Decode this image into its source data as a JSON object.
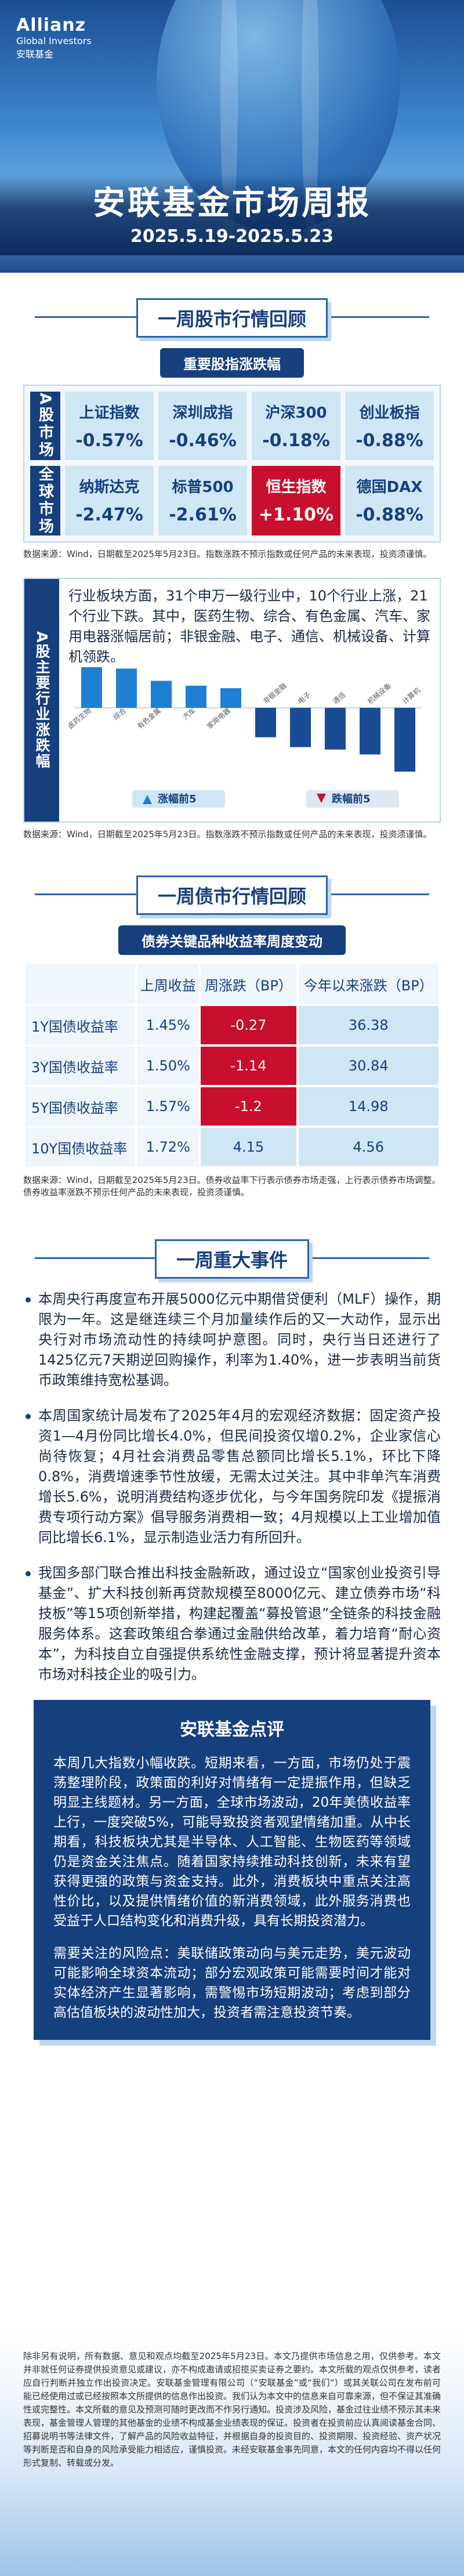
{
  "header": {
    "brand": "Allianz",
    "brand_sub": "Global Investors",
    "brand_cn": "安联基金",
    "title": "安联基金市场周报",
    "date": "2025.5.19-2025.5.23"
  },
  "stock": {
    "heading": "一周股市行情回顾",
    "subheading": "重要股指涨跌幅",
    "groups": [
      {
        "label": "A股市场",
        "indices": [
          {
            "name": "上证指数",
            "change": "-0.57%"
          },
          {
            "name": "深圳成指",
            "change": "-0.46%"
          },
          {
            "name": "沪深300",
            "change": "-0.18%"
          },
          {
            "name": "创业板指",
            "change": "-0.88%"
          }
        ]
      },
      {
        "label": "全球市场",
        "indices": [
          {
            "name": "纳斯达克",
            "change": "-2.47%"
          },
          {
            "name": "标普500",
            "change": "-2.61%"
          },
          {
            "name": "恒生指数",
            "change": "+1.10%"
          },
          {
            "name": "德国DAX",
            "change": "-0.88%"
          }
        ]
      }
    ],
    "note": "数据来源：Wind，日期截至2025年5月23日。指数涨跌不预示指数或任何产品的未来表现，投资须谨慎。"
  },
  "industry": {
    "label": "A股主要行业涨跌幅",
    "text": "行业板块方面，31个申万一级行业中，10个行业上涨，21个行业下跌。其中，医药生物、综合、有色金属、汽车、家用电器涨幅居前；非银金融、电子、通信、机械设备、计算机领跌。",
    "chart_data": {
      "type": "bar",
      "categories": [
        "医药生物",
        "综合",
        "有色金属",
        "汽车",
        "家用电器",
        "非银金融",
        "电子",
        "通信",
        "机械设备",
        "计算机"
      ],
      "series": [
        {
          "name": "涨幅前5",
          "color": "#1f80d3",
          "values": [
            2.2,
            1.6,
            1.1,
            0.9,
            0.8,
            null,
            null,
            null,
            null,
            null
          ]
        },
        {
          "name": "跌幅前5",
          "color": "#1a4c96",
          "values": [
            null,
            null,
            null,
            null,
            null,
            -1.2,
            -1.6,
            -1.7,
            -1.9,
            -2.6
          ]
        }
      ]
    },
    "note": "数据来源：Wind，日期截至2025年5月23日。指数涨跌不预示指数或任何产品的未来表现，投资须谨慎。"
  },
  "bond": {
    "heading": "一周债市行情回顾",
    "subheading": "债券关键品种收益率周度变动",
    "columns": [
      "上周收益",
      "周涨跌（BP）",
      "今年以来涨跌（BP）"
    ],
    "rows": [
      {
        "name": "1Y国债收益率",
        "yield": "1.45%",
        "week": -0.27,
        "ytd": 36.38
      },
      {
        "name": "3Y国债收益率",
        "yield": "1.50%",
        "week": -1.14,
        "ytd": 30.84
      },
      {
        "name": "5Y国债收益率",
        "yield": "1.57%",
        "week": -1.2,
        "ytd": 14.98
      },
      {
        "name": "10Y国债收益率",
        "yield": "1.72%",
        "week": 4.15,
        "ytd": 4.56
      }
    ],
    "note": "数据来源：Wind，日期截至2025年5月23日。债券收益率下行表示债券市场走强，上行表示债券市场调整。债券收益率涨跌不预示任何产品的未来表现，投资须谨慎。"
  },
  "events": {
    "heading": "一周重大事件",
    "items": [
      "本周央行再度宣布开展5000亿元中期借贷便利（MLF）操作，期限为一年。这是继连续三个月加量续作后的又一大动作，显示出央行对市场流动性的持续呵护意图。同时，央行当日还进行了1425亿元7天期逆回购操作，利率为1.40%，进一步表明当前货币政策维持宽松基调。",
      "本周国家统计局发布了2025年4月的宏观经济数据：固定资产投资1—4月份同比增长4.0%，但民间投资仅增0.2%，企业家信心尚待恢复；4月社会消费品零售总额同比增长5.1%，环比下降0.8%，消费增速季节性放缓，无需太过关注。其中非单汽车消费增长5.6%，说明消费结构逐步优化，与今年国务院印发《提振消费专项行动方案》倡导服务消费相一致；4月规模以上工业增加值同比增长6.1%，显示制造业活力有所回升。",
      "我国多部门联合推出科技金融新政，通过设立“国家创业投资引导基金”、扩大科技创新再贷款规模至8000亿元、建立债券市场“科技板”等15项创新举措，构建起覆盖“募投管退”全链条的科技金融服务体系。这套政策组合拳通过金融供给改革，着力培育“耐心资本”，为科技自立自强提供系统性金融支撑，预计将显著提升资本市场对科技企业的吸引力。"
    ]
  },
  "review": {
    "heading": "安联基金点评",
    "paragraphs": [
      "本周几大指数小幅收跌。短期来看，一方面，市场仍处于震荡整理阶段，政策面的利好对情绪有一定提振作用，但缺乏明显主线题材。另一方面，全球市场波动，20年美债收益率上行，一度突破5%，可能导致投资者观望情绪加重。从中长期看，科技板块尤其是半导体、人工智能、生物医药等领域仍是资金关注焦点。随着国家持续推动科技创新，未来有望获得更强的政策与资金支持。此外，消费板块中重点关注高性价比，以及提供情绪价值的新消费领域，此外服务消费也受益于人口结构变化和消费升级，具有长期投资潜力。",
      "需要关注的风险点：美联储政策动向与美元走势，美元波动可能影响全球资本流动；部分宏观政策可能需要时间才能对实体经济产生显著影响，需警惕市场短期波动；考虑到部分高估值板块的波动性加大，投资者需注意投资节奏。"
    ]
  },
  "disclaimer": "除非另有说明，所有数据、意见和观点均截至2025年5月23日。本文乃提供市场信息之用，仅供参考。本文并非就任何证券提供投资意见或建议，亦不构成邀请或招揽买卖证券之要约。本文所载的观点仅供参考，读者应自行判断并独立作出投资决定。安联基金管理有限公司（“安联基金”或“我们”）或其关联公司在发布前可能已经使用过或已经按照本文所提供的信息作出投资。我们认为本文中的信息来自可靠来源，但不保证其准确性或完整性。本文所载的意见及预测可随时更改而不作另行通知。投资涉及风险，基金过往业绩不预示其未来表现，基金管理人管理的其他基金的业绩不构成基金业绩表现的保证。投资者在投资前应认真阅读基金合同、招募说明书等法律文件，了解产品的风险收益特征，并根据自身的投资目的、投资期限、投资经验、资产状况等判断是否和自身的风险承受能力相适应，谨慎投资。未经安联基金事先同意，本文的任何内容均不得以任何形式复制、转载或分发。"
}
